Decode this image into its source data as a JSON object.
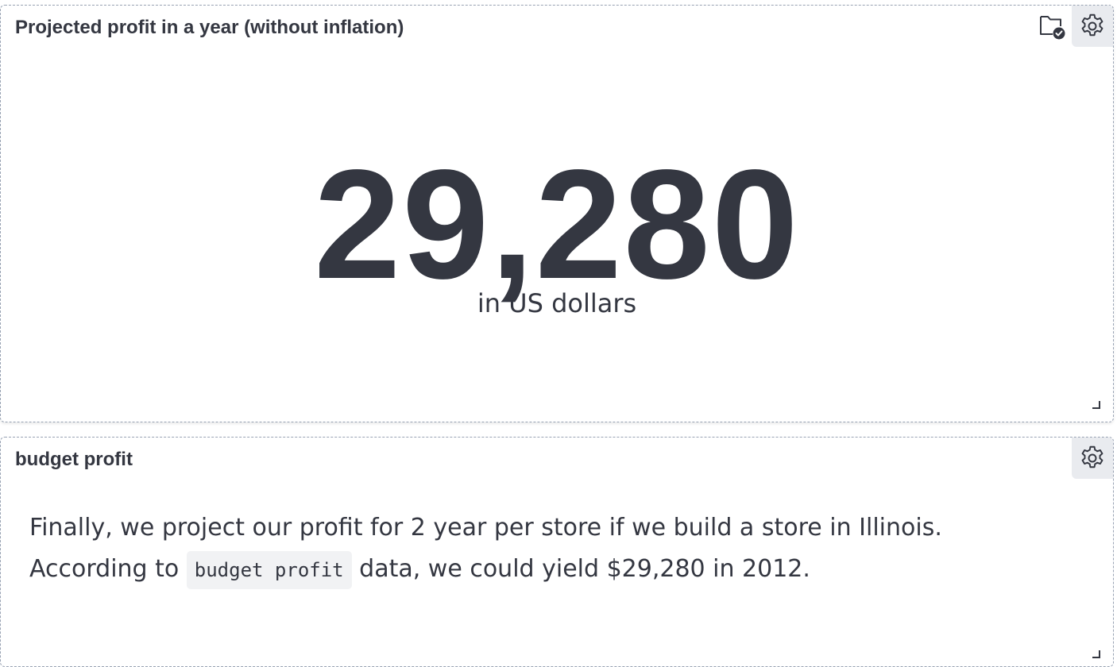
{
  "panels": [
    {
      "title": "Projected profit in a year (without inflation)",
      "metric": {
        "value": "29,280",
        "subtitle": "in US dollars"
      },
      "icons": [
        "folder-check-icon",
        "gear-icon"
      ]
    },
    {
      "title": "budget profit",
      "markdown": {
        "line1": "Finally, we project our profit for 2 year per store if we build a store in Illinois.",
        "line2_before": "According to ",
        "code": "budget profit",
        "line2_after": " data, we could yield $29,280 in 2012."
      },
      "icons": [
        "gear-icon"
      ]
    }
  ]
}
